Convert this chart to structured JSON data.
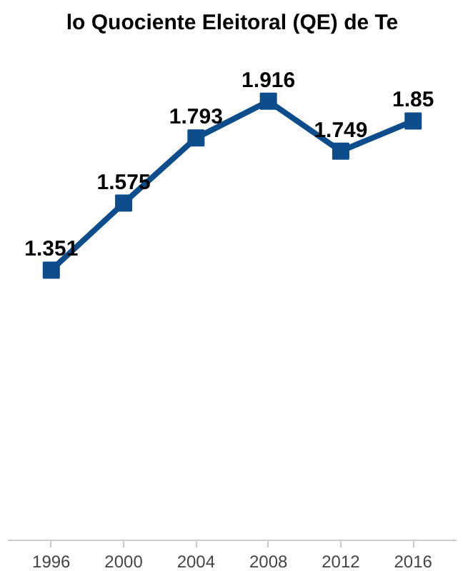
{
  "chart_data": {
    "type": "line",
    "title": "lo Quociente Eleitoral (QE) de Te",
    "categories": [
      "1996",
      "2000",
      "2004",
      "2008",
      "2012",
      "2016"
    ],
    "series": [
      {
        "color": "#0d4d8c",
        "values": [
          1.351,
          1.575,
          1.793,
          1.916,
          1.749,
          1.85
        ]
      }
    ],
    "data_labels": true,
    "marker": "square",
    "line_style": "solid",
    "tick_labels": "x"
  }
}
